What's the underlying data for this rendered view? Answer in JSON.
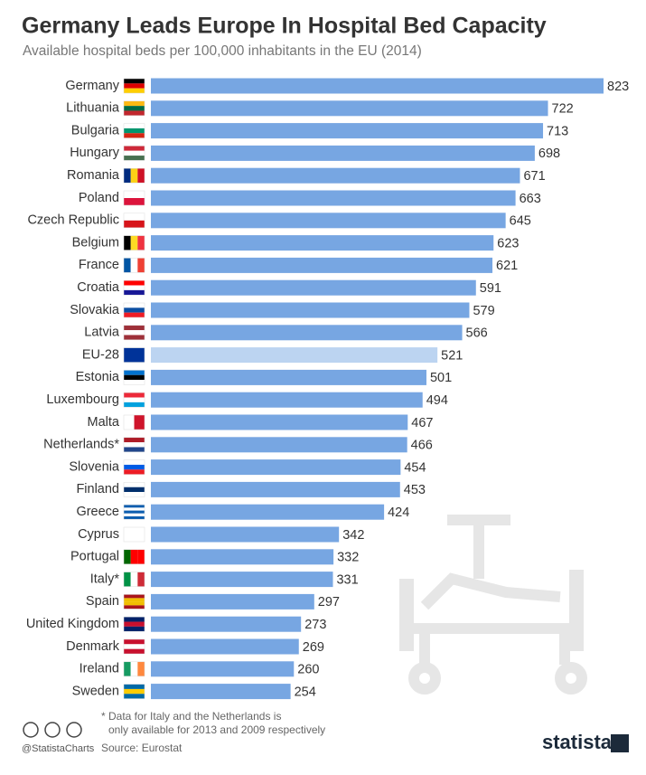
{
  "chart_data": {
    "type": "bar",
    "orientation": "horizontal",
    "title": "Germany Leads Europe In Hospital Bed Capacity",
    "subtitle": "Available hospital beds per 100,000 inhabitants in the EU (2014)",
    "categories": [
      "Germany",
      "Lithuania",
      "Bulgaria",
      "Hungary",
      "Romania",
      "Poland",
      "Czech Republic",
      "Belgium",
      "France",
      "Croatia",
      "Slovakia",
      "Latvia",
      "EU-28",
      "Estonia",
      "Luxembourg",
      "Malta",
      "Netherlands*",
      "Slovenia",
      "Finland",
      "Greece",
      "Cyprus",
      "Portugal",
      "Italy*",
      "Spain",
      "United Kingdom",
      "Denmark",
      "Ireland",
      "Sweden"
    ],
    "values": [
      823,
      722,
      713,
      698,
      671,
      663,
      645,
      623,
      621,
      591,
      579,
      566,
      521,
      501,
      494,
      467,
      466,
      454,
      453,
      424,
      342,
      332,
      331,
      297,
      273,
      269,
      260,
      254
    ],
    "colors": [
      "#77a6e2",
      "#77a6e2",
      "#77a6e2",
      "#77a6e2",
      "#77a6e2",
      "#77a6e2",
      "#77a6e2",
      "#77a6e2",
      "#77a6e2",
      "#77a6e2",
      "#77a6e2",
      "#77a6e2",
      "#bcd4f1",
      "#77a6e2",
      "#77a6e2",
      "#77a6e2",
      "#77a6e2",
      "#77a6e2",
      "#77a6e2",
      "#77a6e2",
      "#77a6e2",
      "#77a6e2",
      "#77a6e2",
      "#77a6e2",
      "#77a6e2",
      "#77a6e2",
      "#77a6e2",
      "#77a6e2"
    ],
    "note": [
      "* Data for Italy and the Netherlands is",
      "only available for 2013 and 2009 respectively"
    ],
    "source": "Source: Eurostat",
    "handle": "@StatistaCharts",
    "brand": "statista"
  }
}
